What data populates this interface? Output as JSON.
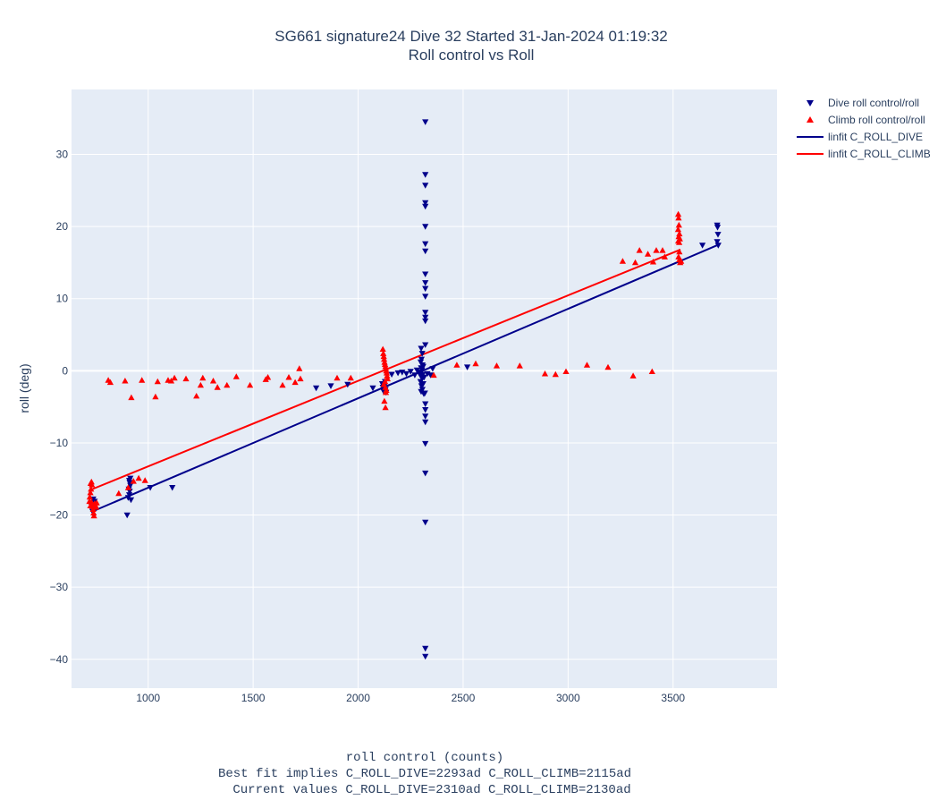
{
  "chart_data": {
    "type": "scatter",
    "title": [
      "SG661 signature24 Dive 32 Started 31-Jan-2024 01:19:32",
      "Roll control vs Roll"
    ],
    "xlabel": [
      "roll control (counts)",
      "Best fit implies C_ROLL_DIVE=2293ad C_ROLL_CLIMB=2115ad",
      "Current values C_ROLL_DIVE=2310ad C_ROLL_CLIMB=2130ad"
    ],
    "ylabel": "roll (deg)",
    "xlim": [
      635,
      3995
    ],
    "ylim": [
      -44,
      39
    ],
    "xticks": [
      1000,
      1500,
      2000,
      2500,
      3000,
      3500
    ],
    "yticks": [
      -40,
      -30,
      -20,
      -10,
      0,
      10,
      20,
      30
    ],
    "grid": true,
    "legend_position": "top-right-outside",
    "series": [
      {
        "name": "Dive roll control/roll",
        "kind": "markers",
        "marker": "triangle-down",
        "color": "#00008b",
        "points": [
          [
            735,
            -19.5
          ],
          [
            740,
            -18.9
          ],
          [
            742,
            -18.4
          ],
          [
            745,
            -18.1
          ],
          [
            738,
            -17.8
          ],
          [
            748,
            -18.6
          ],
          [
            900,
            -20.0
          ],
          [
            905,
            -17.6
          ],
          [
            910,
            -17.2
          ],
          [
            912,
            -16.7
          ],
          [
            908,
            -16.4
          ],
          [
            915,
            -15.9
          ],
          [
            912,
            -15.5
          ],
          [
            910,
            -15.2
          ],
          [
            915,
            -14.9
          ],
          [
            918,
            -17.9
          ],
          [
            1010,
            -16.2
          ],
          [
            1115,
            -16.2
          ],
          [
            1800,
            -2.4
          ],
          [
            1870,
            -2.1
          ],
          [
            1950,
            -1.9
          ],
          [
            2070,
            -2.4
          ],
          [
            2115,
            -1.8
          ],
          [
            2118,
            -2.3
          ],
          [
            2120,
            -2.7
          ],
          [
            2122,
            -2.9
          ],
          [
            2125,
            -2.1
          ],
          [
            2128,
            -1.5
          ],
          [
            2130,
            -2.6
          ],
          [
            2133,
            -3.0
          ],
          [
            2160,
            -0.5
          ],
          [
            2190,
            -0.3
          ],
          [
            2210,
            -0.2
          ],
          [
            2230,
            -0.4
          ],
          [
            2250,
            -0.1
          ],
          [
            2270,
            -0.6
          ],
          [
            2280,
            0.1
          ],
          [
            2290,
            -0.3
          ],
          [
            2300,
            3.1
          ],
          [
            2305,
            2.4
          ],
          [
            2302,
            1.6
          ],
          [
            2298,
            1.2
          ],
          [
            2306,
            0.8
          ],
          [
            2300,
            0.4
          ],
          [
            2304,
            0.1
          ],
          [
            2296,
            -0.2
          ],
          [
            2308,
            -0.5
          ],
          [
            2300,
            -0.8
          ],
          [
            2305,
            -1.1
          ],
          [
            2297,
            -1.5
          ],
          [
            2310,
            -1.8
          ],
          [
            2302,
            -2.1
          ],
          [
            2306,
            -2.6
          ],
          [
            2300,
            -2.9
          ],
          [
            2313,
            -3.2
          ],
          [
            2318,
            -3.1
          ],
          [
            2310,
            0.6
          ],
          [
            2314,
            -0.9
          ],
          [
            2320,
            34.5
          ],
          [
            2320,
            27.2
          ],
          [
            2320,
            25.7
          ],
          [
            2320,
            23.3
          ],
          [
            2320,
            22.8
          ],
          [
            2320,
            20.0
          ],
          [
            2320,
            17.6
          ],
          [
            2320,
            16.6
          ],
          [
            2320,
            13.4
          ],
          [
            2320,
            12.2
          ],
          [
            2320,
            11.4
          ],
          [
            2320,
            10.3
          ],
          [
            2320,
            8.1
          ],
          [
            2320,
            7.4
          ],
          [
            2320,
            6.9
          ],
          [
            2320,
            3.6
          ],
          [
            2320,
            -4.6
          ],
          [
            2320,
            -5.4
          ],
          [
            2320,
            -6.3
          ],
          [
            2320,
            -7.1
          ],
          [
            2320,
            -10.1
          ],
          [
            2320,
            -14.2
          ],
          [
            2320,
            -21.0
          ],
          [
            2320,
            -38.5
          ],
          [
            2320,
            -39.6
          ],
          [
            2330,
            -0.4
          ],
          [
            2345,
            -0.6
          ],
          [
            2355,
            0.3
          ],
          [
            2520,
            0.5
          ],
          [
            3640,
            17.4
          ],
          [
            3710,
            20.2
          ],
          [
            3712,
            19.9
          ],
          [
            3714,
            18.9
          ],
          [
            3710,
            17.9
          ],
          [
            3715,
            17.4
          ]
        ]
      },
      {
        "name": "Climb roll control/roll",
        "kind": "markers",
        "marker": "triangle-up",
        "color": "#ff0000",
        "points": [
          [
            720,
            -18.1
          ],
          [
            722,
            -17.5
          ],
          [
            725,
            -16.9
          ],
          [
            728,
            -16.4
          ],
          [
            726,
            -15.6
          ],
          [
            730,
            -15.4
          ],
          [
            732,
            -15.8
          ],
          [
            735,
            -18.8
          ],
          [
            738,
            -19.2
          ],
          [
            740,
            -19.7
          ],
          [
            742,
            -20.1
          ],
          [
            745,
            -18.4
          ],
          [
            748,
            -18.6
          ],
          [
            752,
            -18.9
          ],
          [
            755,
            -18.3
          ],
          [
            725,
            -18.7
          ],
          [
            730,
            -18.2
          ],
          [
            810,
            -1.3
          ],
          [
            820,
            -1.6
          ],
          [
            860,
            -17.0
          ],
          [
            890,
            -1.4
          ],
          [
            905,
            -16.2
          ],
          [
            920,
            -3.7
          ],
          [
            930,
            -15.3
          ],
          [
            955,
            -14.9
          ],
          [
            970,
            -1.3
          ],
          [
            985,
            -15.2
          ],
          [
            1035,
            -3.6
          ],
          [
            1045,
            -1.5
          ],
          [
            1095,
            -1.3
          ],
          [
            1110,
            -1.4
          ],
          [
            1125,
            -1.0
          ],
          [
            1180,
            -1.1
          ],
          [
            1230,
            -3.5
          ],
          [
            1250,
            -2.0
          ],
          [
            1260,
            -1.0
          ],
          [
            1310,
            -1.4
          ],
          [
            1330,
            -2.3
          ],
          [
            1375,
            -2.0
          ],
          [
            1420,
            -0.8
          ],
          [
            1485,
            -2.0
          ],
          [
            1560,
            -1.2
          ],
          [
            1570,
            -0.9
          ],
          [
            1640,
            -2.0
          ],
          [
            1670,
            -0.9
          ],
          [
            1700,
            -1.6
          ],
          [
            1720,
            0.3
          ],
          [
            1725,
            -1.1
          ],
          [
            1900,
            -1.0
          ],
          [
            1965,
            -1.0
          ],
          [
            2118,
            3.0
          ],
          [
            2120,
            2.4
          ],
          [
            2122,
            2.0
          ],
          [
            2124,
            1.6
          ],
          [
            2126,
            1.2
          ],
          [
            2128,
            0.9
          ],
          [
            2130,
            0.6
          ],
          [
            2132,
            0.3
          ],
          [
            2134,
            0.0
          ],
          [
            2136,
            -0.3
          ],
          [
            2138,
            -0.7
          ],
          [
            2140,
            -1.1
          ],
          [
            2128,
            -1.5
          ],
          [
            2122,
            -1.9
          ],
          [
            2130,
            -2.3
          ],
          [
            2134,
            -2.7
          ],
          [
            2132,
            -3.0
          ],
          [
            2125,
            -4.2
          ],
          [
            2130,
            -5.1
          ],
          [
            2360,
            -0.6
          ],
          [
            2470,
            0.8
          ],
          [
            2560,
            1.0
          ],
          [
            2660,
            0.7
          ],
          [
            2770,
            0.7
          ],
          [
            2890,
            -0.4
          ],
          [
            2940,
            -0.5
          ],
          [
            2990,
            -0.1
          ],
          [
            3090,
            0.8
          ],
          [
            3190,
            0.5
          ],
          [
            3260,
            15.2
          ],
          [
            3310,
            -0.7
          ],
          [
            3320,
            15.0
          ],
          [
            3340,
            16.7
          ],
          [
            3380,
            16.2
          ],
          [
            3400,
            -0.1
          ],
          [
            3405,
            15.1
          ],
          [
            3420,
            16.7
          ],
          [
            3450,
            16.7
          ],
          [
            3460,
            15.8
          ],
          [
            3525,
            21.7
          ],
          [
            3526,
            21.2
          ],
          [
            3528,
            20.2
          ],
          [
            3524,
            19.6
          ],
          [
            3530,
            19.0
          ],
          [
            3527,
            18.6
          ],
          [
            3532,
            18.3
          ],
          [
            3525,
            18.0
          ],
          [
            3529,
            17.8
          ],
          [
            3530,
            16.5
          ],
          [
            3526,
            15.8
          ],
          [
            3530,
            15.4
          ],
          [
            3534,
            15.0
          ],
          [
            3538,
            15.2
          ]
        ]
      },
      {
        "name": "linfit C_ROLL_DIVE",
        "kind": "line",
        "color": "#00008b",
        "points": [
          [
            735,
            -19.5
          ],
          [
            3710,
            17.4
          ]
        ]
      },
      {
        "name": "linfit C_ROLL_CLIMB",
        "kind": "line",
        "color": "#ff0000",
        "points": [
          [
            735,
            -16.4
          ],
          [
            3535,
            16.8
          ]
        ]
      }
    ]
  },
  "colors": {
    "plot_bg": "#e5ecf6",
    "grid": "#ffffff",
    "text": "#2a3f5f"
  }
}
